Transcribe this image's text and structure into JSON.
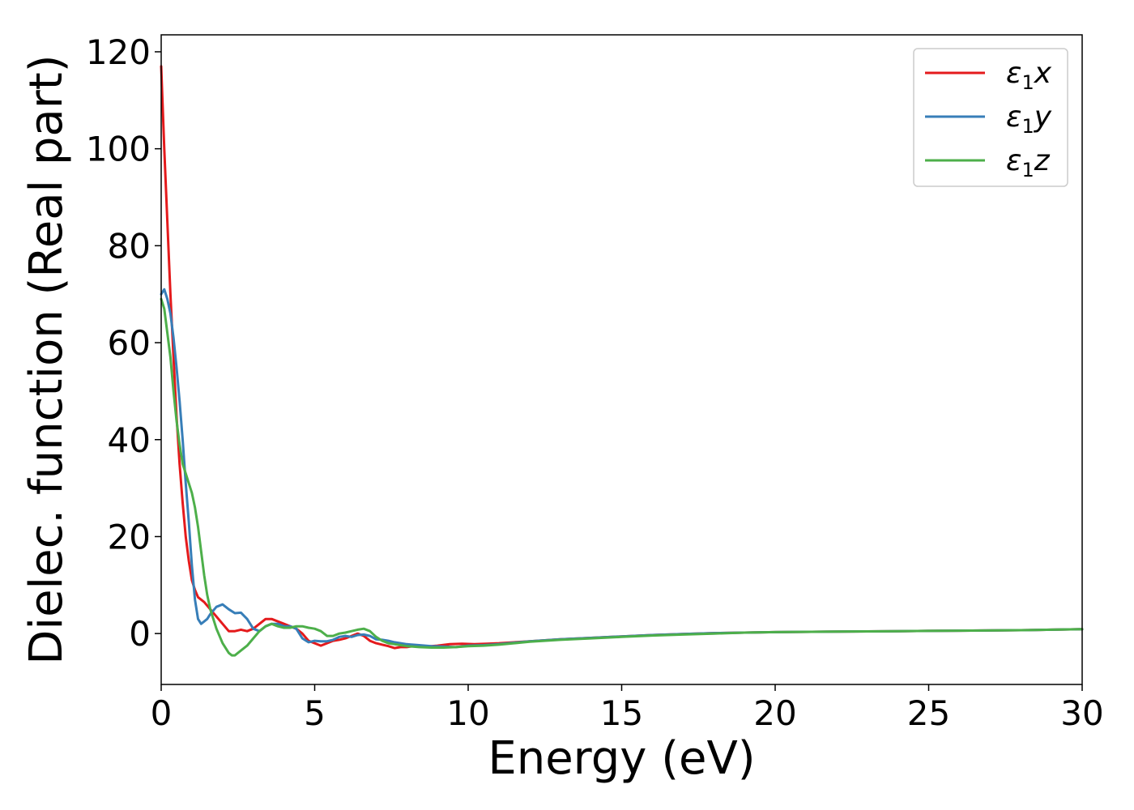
{
  "chart_data": {
    "type": "line",
    "xlabel": "Energy (eV)",
    "ylabel": "Dielec. function (Real part)",
    "xlim": [
      0,
      30
    ],
    "ylim": [
      -10.5,
      123.5
    ],
    "xticks": [
      0,
      5,
      10,
      15,
      20,
      25,
      30
    ],
    "yticks": [
      0,
      20,
      40,
      60,
      80,
      100,
      120
    ],
    "grid": false,
    "legend_position": "top-right",
    "series": [
      {
        "name": "ε1x",
        "legend": {
          "base": "ε",
          "sub": "1",
          "var": "x"
        },
        "color": "#e41a1c",
        "x": [
          0,
          0.1,
          0.2,
          0.3,
          0.4,
          0.5,
          0.6,
          0.7,
          0.8,
          0.9,
          1.0,
          1.1,
          1.2,
          1.4,
          1.6,
          1.8,
          2.0,
          2.2,
          2.4,
          2.6,
          2.8,
          3.0,
          3.2,
          3.4,
          3.6,
          3.8,
          4.0,
          4.2,
          4.4,
          4.6,
          4.8,
          5.0,
          5.2,
          5.4,
          5.6,
          5.8,
          6.0,
          6.2,
          6.4,
          6.6,
          6.8,
          7.0,
          7.2,
          7.4,
          7.6,
          7.8,
          8.0,
          8.2,
          8.4,
          8.6,
          8.8,
          9.0,
          9.4,
          9.8,
          10.2,
          10.6,
          11.0,
          12,
          13,
          14,
          15,
          16,
          17,
          18,
          19,
          20,
          22,
          24,
          26,
          28,
          30
        ],
        "values": [
          117,
          100,
          85,
          70,
          57,
          45,
          35,
          27,
          20,
          15,
          11,
          9,
          7.5,
          6.5,
          5,
          3.5,
          2,
          0.5,
          0.5,
          0.8,
          0.5,
          1,
          2,
          3,
          3,
          2.5,
          2,
          1.5,
          1,
          0,
          -1.5,
          -2,
          -2.5,
          -2,
          -1.5,
          -1.3,
          -1,
          -0.5,
          0,
          -0.5,
          -1.5,
          -2,
          -2.3,
          -2.6,
          -3,
          -2.8,
          -2.8,
          -2.6,
          -2.5,
          -2.7,
          -2.6,
          -2.5,
          -2.2,
          -2.1,
          -2.2,
          -2.1,
          -2,
          -1.6,
          -1.2,
          -0.9,
          -0.6,
          -0.3,
          -0.1,
          0.1,
          0.2,
          0.3,
          0.4,
          0.5,
          0.6,
          0.7,
          0.9
        ]
      },
      {
        "name": "ε1y",
        "legend": {
          "base": "ε",
          "sub": "1",
          "var": "y"
        },
        "color": "#377eb8",
        "x": [
          0,
          0.1,
          0.2,
          0.3,
          0.4,
          0.5,
          0.6,
          0.7,
          0.8,
          0.9,
          1.0,
          1.1,
          1.2,
          1.3,
          1.4,
          1.5,
          1.6,
          1.8,
          2.0,
          2.2,
          2.4,
          2.6,
          2.8,
          3.0,
          3.2,
          3.4,
          3.6,
          3.8,
          4.0,
          4.2,
          4.4,
          4.6,
          4.8,
          5.0,
          5.2,
          5.4,
          5.6,
          5.8,
          6.0,
          6.2,
          6.4,
          6.6,
          6.8,
          7.0,
          7.2,
          7.4,
          7.6,
          7.8,
          8.0,
          8.4,
          8.8,
          9.2,
          9.6,
          10.0,
          10.5,
          11.0,
          12,
          13,
          14,
          15,
          16,
          17,
          18,
          19,
          20,
          22,
          24,
          26,
          28,
          30
        ],
        "values": [
          70,
          71,
          69,
          66,
          61,
          55,
          48,
          40,
          31,
          23,
          14,
          7,
          3,
          2,
          2.5,
          3,
          4,
          5.5,
          6,
          5,
          4.2,
          4.3,
          3,
          1,
          0.5,
          1.5,
          2,
          2,
          1.5,
          1.5,
          1,
          -1,
          -1.8,
          -1.5,
          -1.6,
          -1.6,
          -1.3,
          -0.7,
          -0.5,
          -0.7,
          -0.3,
          -0.2,
          -0.5,
          -1.2,
          -1.3,
          -1.5,
          -1.8,
          -2,
          -2.2,
          -2.4,
          -2.6,
          -2.7,
          -2.8,
          -2.5,
          -2.4,
          -2.2,
          -1.6,
          -1.2,
          -0.9,
          -0.6,
          -0.3,
          -0.1,
          0.1,
          0.2,
          0.3,
          0.4,
          0.5,
          0.6,
          0.7,
          0.9
        ]
      },
      {
        "name": "ε1z",
        "legend": {
          "base": "ε",
          "sub": "1",
          "var": "z"
        },
        "color": "#4daf4a",
        "x": [
          0,
          0.1,
          0.2,
          0.3,
          0.4,
          0.5,
          0.6,
          0.7,
          0.8,
          0.9,
          1.0,
          1.1,
          1.2,
          1.3,
          1.4,
          1.5,
          1.6,
          1.8,
          2.0,
          2.2,
          2.3,
          2.4,
          2.6,
          2.8,
          3.0,
          3.2,
          3.4,
          3.6,
          3.8,
          4.0,
          4.2,
          4.4,
          4.6,
          4.8,
          5.0,
          5.2,
          5.4,
          5.6,
          5.8,
          6.0,
          6.2,
          6.4,
          6.6,
          6.8,
          7.0,
          7.2,
          7.4,
          7.6,
          7.8,
          8.0,
          8.4,
          8.8,
          9.2,
          9.6,
          10.0,
          10.5,
          11.0,
          12,
          13,
          14,
          15,
          16,
          17,
          18,
          19,
          20,
          22,
          24,
          26,
          28,
          30
        ],
        "values": [
          69,
          67,
          62,
          57,
          50,
          44,
          39,
          35,
          33,
          31,
          29,
          26,
          22,
          17,
          12,
          8,
          5,
          1,
          -2,
          -4,
          -4.5,
          -4.5,
          -3.5,
          -2.5,
          -1,
          0.5,
          1.5,
          2,
          1.5,
          1.2,
          1.2,
          1.5,
          1.5,
          1.2,
          1,
          0.5,
          -0.5,
          -0.5,
          0,
          0.2,
          0.5,
          0.8,
          1,
          0.5,
          -0.7,
          -1.5,
          -2,
          -2.2,
          -2.4,
          -2.6,
          -2.8,
          -2.9,
          -2.9,
          -2.8,
          -2.6,
          -2.5,
          -2.3,
          -1.7,
          -1.3,
          -1,
          -0.7,
          -0.4,
          -0.2,
          0,
          0.2,
          0.3,
          0.4,
          0.5,
          0.6,
          0.7,
          0.9
        ]
      }
    ]
  }
}
